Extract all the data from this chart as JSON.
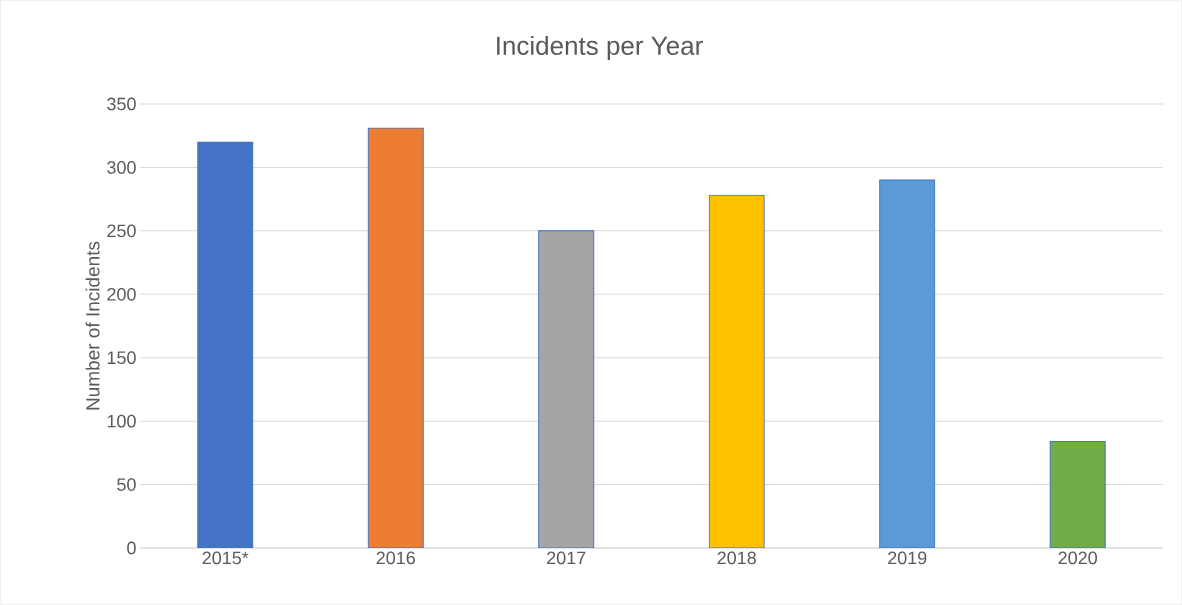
{
  "chart_data": {
    "type": "bar",
    "title": "Incidents per Year",
    "ylabel": "Number of Incidents",
    "categories": [
      "2015*",
      "2016",
      "2017",
      "2018",
      "2019",
      "2020"
    ],
    "values": [
      320,
      331,
      250,
      278,
      290,
      84
    ],
    "colors": [
      "#4472c4",
      "#ed7d31",
      "#a5a5a5",
      "#ffc000",
      "#5b9bd5",
      "#70ad47"
    ],
    "ylim": [
      0,
      350
    ],
    "yticks": [
      0,
      50,
      100,
      150,
      200,
      250,
      300,
      350
    ],
    "grid": "y"
  }
}
